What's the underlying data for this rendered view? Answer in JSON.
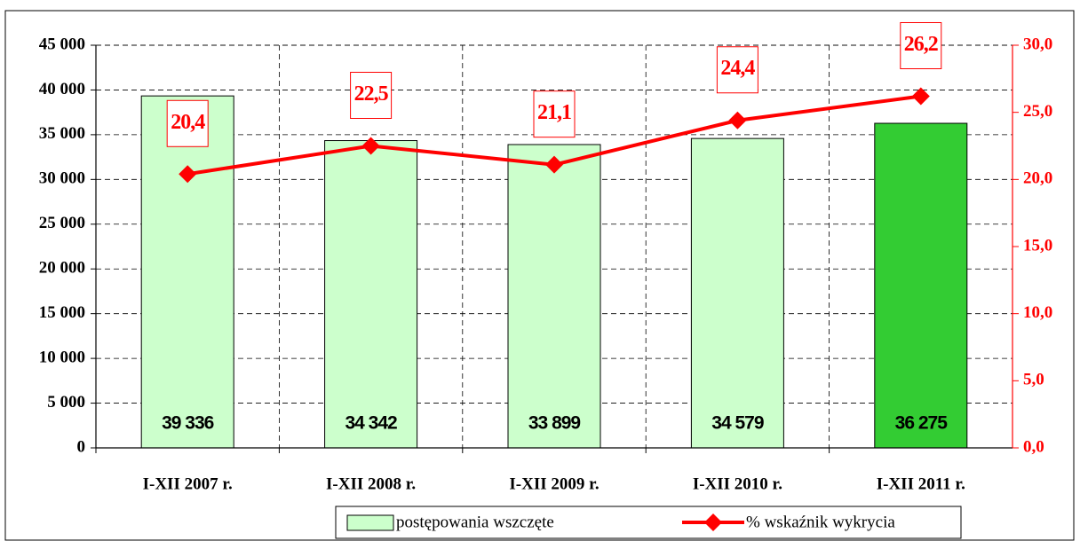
{
  "chart_data": {
    "type": "bar_line",
    "categories": [
      "I-XII 2007 r.",
      "I-XII 2008 r.",
      "I-XII 2009 r.",
      "I-XII 2010 r.",
      "I-XII 2011 r."
    ],
    "series": [
      {
        "name": "postępowania wszczęte",
        "type": "bar",
        "color": "#ccffcc",
        "colors": [
          "#ccffcc",
          "#ccffcc",
          "#ccffcc",
          "#ccffcc",
          "#33cc33"
        ],
        "values": [
          39336,
          34342,
          33899,
          34579,
          36275
        ],
        "value_labels": [
          "39 336",
          "34 342",
          "33 899",
          "34 579",
          "36 275"
        ]
      },
      {
        "name": "% wskaźnik wykrycia",
        "type": "line",
        "color": "#ff0000",
        "axis": "y2",
        "values": [
          20.4,
          22.5,
          21.1,
          24.4,
          26.2
        ],
        "value_labels": [
          "20,4",
          "22,5",
          "21,1",
          "24,4",
          "26,2"
        ]
      }
    ],
    "ylim": [
      0,
      45000
    ],
    "yticks": [
      {
        "value": 0,
        "label": "0"
      },
      {
        "value": 5000,
        "label": "5 000"
      },
      {
        "value": 10000,
        "label": "10 000"
      },
      {
        "value": 15000,
        "label": "15 000"
      },
      {
        "value": 20000,
        "label": "20 000"
      },
      {
        "value": 25000,
        "label": "25 000"
      },
      {
        "value": 30000,
        "label": "30 000"
      },
      {
        "value": 35000,
        "label": "35 000"
      },
      {
        "value": 40000,
        "label": "40 000"
      },
      {
        "value": 45000,
        "label": "45 000"
      }
    ],
    "y2lim": [
      0,
      30
    ],
    "y2ticks": [
      {
        "value": 0,
        "label": "0,0"
      },
      {
        "value": 5,
        "label": "5,0"
      },
      {
        "value": 10,
        "label": "10,0"
      },
      {
        "value": 15,
        "label": "15,0"
      },
      {
        "value": 20,
        "label": "20,0"
      },
      {
        "value": 25,
        "label": "25,0"
      },
      {
        "value": 30,
        "label": "30,0"
      }
    ],
    "grid": true,
    "legend": "bottom"
  }
}
